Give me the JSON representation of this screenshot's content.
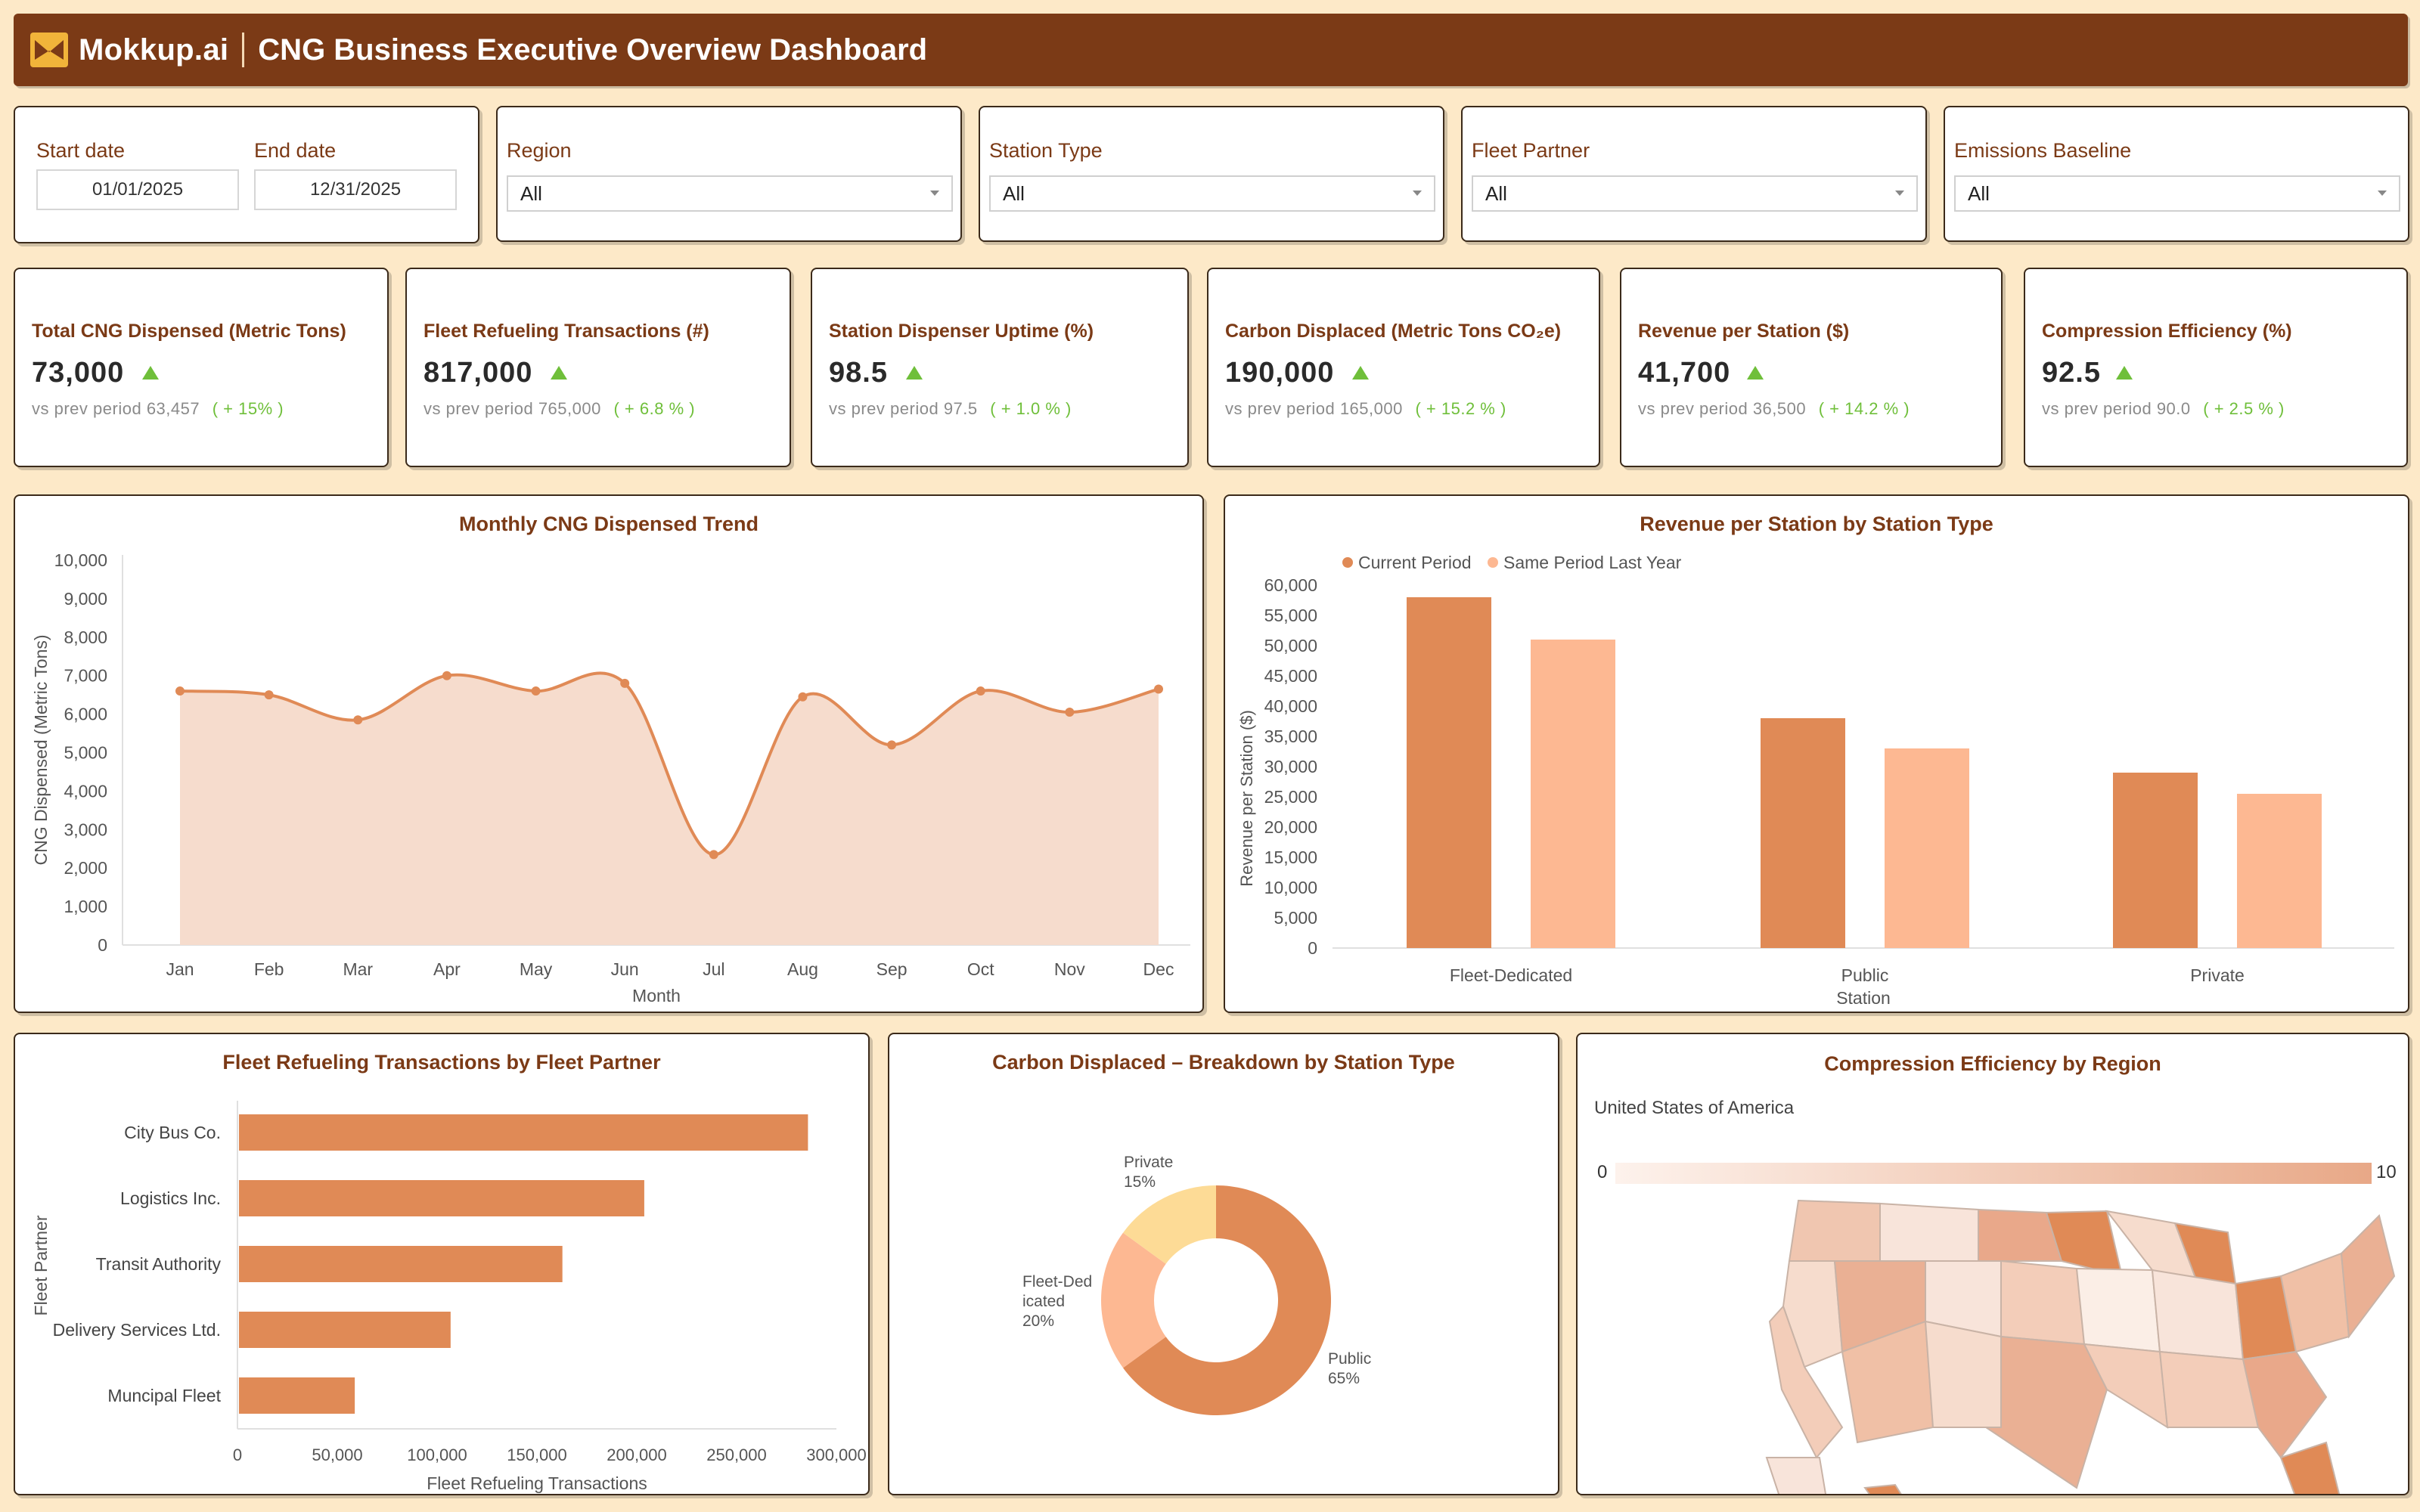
{
  "header": {
    "brand": "Mokkup.ai",
    "title": "CNG Business Executive Overview Dashboard"
  },
  "filters": {
    "start_date_label": "Start date",
    "start_date_value": "01/01/2025",
    "end_date_label": "End date",
    "end_date_value": "12/31/2025",
    "region_label": "Region",
    "region_value": "All",
    "station_type_label": "Station Type",
    "station_type_value": "All",
    "fleet_partner_label": "Fleet Partner",
    "fleet_partner_value": "All",
    "emissions_label": "Emissions Baseline",
    "emissions_value": "All"
  },
  "kpis": [
    {
      "title": "Total CNG Dispensed (Metric Tons)",
      "value": "73,000",
      "prev_label": "vs prev period",
      "prev_value": "63,457",
      "delta": "( + 15% )"
    },
    {
      "title": "Fleet Refueling Transactions (#)",
      "value": "817,000",
      "prev_label": "vs prev period",
      "prev_value": "765,000",
      "delta": "( + 6.8 % )"
    },
    {
      "title": "Station Dispenser Uptime (%)",
      "value": "98.5",
      "prev_label": "vs prev period",
      "prev_value": "97.5",
      "delta": "( + 1.0 % )"
    },
    {
      "title": "Carbon Displaced (Metric Tons CO₂e)",
      "value": "190,000",
      "prev_label": "vs prev period",
      "prev_value": "165,000",
      "delta": "( + 15.2 % )"
    },
    {
      "title": "Revenue per Station ($)",
      "value": "41,700",
      "prev_label": "vs prev period",
      "prev_value": "36,500",
      "delta": "( + 14.2 % )"
    },
    {
      "title": "Compression Efficiency (%)",
      "value": "92.5",
      "prev_label": "vs prev period",
      "prev_value": "90.0",
      "delta": "( + 2.5 % )"
    }
  ],
  "colors": {
    "accent": "#e08a56",
    "accent_light": "#fdb892",
    "area_fill": "#f6dccd",
    "brown": "#7b3a16",
    "up": "#6fbf3a",
    "background": "#fde9c8"
  },
  "chart_data": [
    {
      "id": "monthly-trend",
      "type": "area",
      "title": "Monthly CNG Dispensed Trend",
      "xlabel": "Month",
      "ylabel": "CNG Dispensed (Metric Tons)",
      "ylim": [
        0,
        10000
      ],
      "yticks": [
        "10,000",
        "9,000",
        "8,000",
        "7,000",
        "6,000",
        "5,000",
        "4,000",
        "3,000",
        "2,000",
        "1,000",
        "0"
      ],
      "categories": [
        "Jan",
        "Feb",
        "Mar",
        "Apr",
        "May",
        "Jun",
        "Jul",
        "Aug",
        "Sep",
        "Oct",
        "Nov",
        "Dec"
      ],
      "values": [
        6600,
        6500,
        5850,
        7000,
        6600,
        6800,
        2350,
        6450,
        5200,
        6600,
        6050,
        6650
      ]
    },
    {
      "id": "revenue-by-type",
      "type": "bar",
      "title": "Revenue per Station by Station Type",
      "xlabel": "Station",
      "ylabel": "Revenue per Station ($)",
      "ylim": [
        0,
        60000
      ],
      "yticks": [
        "60,000",
        "55,000",
        "50,000",
        "45,000",
        "40,000",
        "35,000",
        "30,000",
        "25,000",
        "20,000",
        "15,000",
        "10,000",
        "5,000",
        "0"
      ],
      "legend_position": "top-left",
      "categories": [
        "Fleet-Dedicated",
        "Public",
        "Private"
      ],
      "series": [
        {
          "name": "Current Period",
          "values": [
            58000,
            38000,
            29000
          ]
        },
        {
          "name": "Same Period Last Year",
          "values": [
            51000,
            33000,
            25500
          ]
        }
      ]
    },
    {
      "id": "fleet-transactions",
      "type": "bar",
      "title": "Fleet Refueling Transactions by Fleet Partner",
      "xlabel": "Fleet Refueling Transactions",
      "ylabel": "Fleet Partner",
      "xlim": [
        0,
        300000
      ],
      "xticks": [
        "0",
        "50,000",
        "100,000",
        "150,000",
        "200,000",
        "250,000",
        "300,000"
      ],
      "categories": [
        "City Bus Co.",
        "Logistics Inc.",
        "Transit Authority",
        "Delivery Services Ltd.",
        "Muncipal Fleet"
      ],
      "values": [
        285000,
        203000,
        162000,
        106000,
        58000
      ]
    },
    {
      "id": "carbon-breakdown",
      "type": "pie",
      "title": "Carbon Displaced – Breakdown by Station Type",
      "slices": [
        {
          "label": "Public",
          "value": 65,
          "pct": "65%"
        },
        {
          "label": "Fleet-Dedicated",
          "value": 20,
          "pct": "20%",
          "label_lines": [
            "Fleet-Ded",
            "icated"
          ]
        },
        {
          "label": "Private",
          "value": 15,
          "pct": "15%"
        }
      ],
      "slice_colors": [
        "#e08a56",
        "#fdb892",
        "#fddb96"
      ]
    }
  ],
  "map": {
    "title": "Compression Efficiency by Region",
    "subtitle": "United States of America",
    "scale_min": "0",
    "scale_max": "10"
  }
}
